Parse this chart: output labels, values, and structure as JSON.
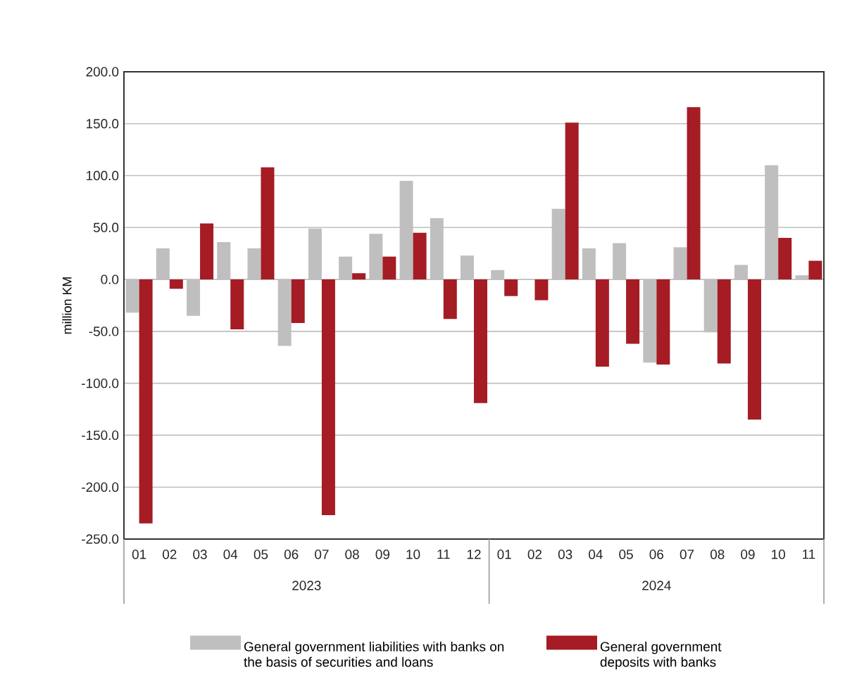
{
  "chart_data": {
    "type": "bar",
    "categories": [
      "01",
      "02",
      "03",
      "04",
      "05",
      "06",
      "07",
      "08",
      "09",
      "10",
      "11",
      "12",
      "01",
      "02",
      "03",
      "04",
      "05",
      "06",
      "07",
      "08",
      "09",
      "10",
      "11"
    ],
    "series": [
      {
        "name": "General government liabilities with banks on the basis of securities and loans",
        "color": "#bfbfbf",
        "values": [
          -32,
          30,
          -35,
          36,
          30,
          -64,
          49,
          22,
          44,
          95,
          59,
          23,
          9,
          null,
          68,
          30,
          35,
          -80,
          31,
          -51,
          14,
          110,
          4
        ]
      },
      {
        "name": "General government deposits with banks",
        "color": "#a51c24",
        "values": [
          -235,
          -9,
          54,
          -48,
          108,
          -42,
          -227,
          6,
          22,
          45,
          -38,
          -119,
          -16,
          -20,
          151,
          -84,
          -62,
          -82,
          166,
          -81,
          -135,
          40,
          18
        ]
      }
    ],
    "ylabel": "million KM",
    "ylim": [
      -250,
      200
    ],
    "yticks": [
      {
        "value": -250,
        "label": "-250.0"
      },
      {
        "value": -200,
        "label": "-200.0"
      },
      {
        "value": -150,
        "label": "-150.0"
      },
      {
        "value": -100,
        "label": "-100.0"
      },
      {
        "value": -50,
        "label": "-50.0"
      },
      {
        "value": 0,
        "label": "0.0"
      },
      {
        "value": 50,
        "label": "50.0"
      },
      {
        "value": 100,
        "label": "100.0"
      },
      {
        "value": 150,
        "label": "150.0"
      },
      {
        "value": 200,
        "label": "200.0"
      }
    ],
    "annotations": [
      "2023",
      "2024"
    ],
    "grid": "y",
    "legend": "bottom"
  }
}
